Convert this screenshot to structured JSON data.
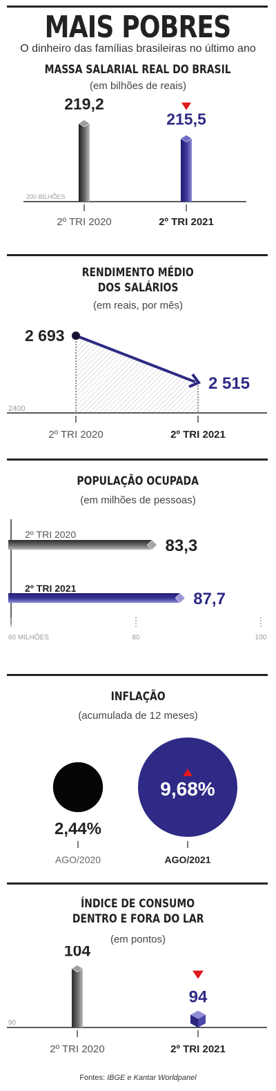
{
  "header": {
    "title": "MAIS POBRES",
    "subtitle": "O dinheiro das famílias brasileiras no último ano"
  },
  "colors": {
    "ink": "#222222",
    "gray_bar": "#555555",
    "navy": "#2e2a85",
    "red": "#e0191d",
    "axis": "#9a9a9a"
  },
  "chart_data": [
    {
      "type": "bar",
      "title": "MASSA SALARIAL REAL DO BRASIL",
      "subtitle": "(em bilhões de reais)",
      "categories": [
        "2º TRI 2020",
        "2º TRI 2021"
      ],
      "values": [
        219.2,
        215.5
      ],
      "value_labels": [
        "219,2",
        "215,5"
      ],
      "baseline": 200,
      "baseline_label": "200 BILHÕES",
      "highlight": "2º TRI 2021",
      "trend": "down"
    },
    {
      "type": "line",
      "title": "RENDIMENTO MÉDIO DOS SALÁRIOS",
      "subtitle": "(em reais, por mês)",
      "categories": [
        "2º TRI 2020",
        "2º TRI 2021"
      ],
      "values": [
        2693,
        2515
      ],
      "value_labels": [
        "2 693",
        "2 515"
      ],
      "baseline": 2400,
      "baseline_label": "2400",
      "highlight": "2º TRI 2021"
    },
    {
      "type": "bar",
      "orientation": "horizontal",
      "title": "POPULAÇÃO OCUPADA",
      "subtitle": "(em milhões de pessoas)",
      "categories": [
        "2º TRI 2020",
        "2º TRI 2021"
      ],
      "values": [
        83.3,
        87.7
      ],
      "value_labels": [
        "83,3",
        "87,7"
      ],
      "xlim": [
        60,
        100
      ],
      "tick_labels": [
        "60 MILHÕES",
        "80",
        "100"
      ],
      "highlight": "2º TRI 2021"
    },
    {
      "type": "bubble",
      "title": "INFLAÇÃO",
      "subtitle": "(acumulada de 12 meses)",
      "categories": [
        "AGO/2020",
        "AGO/2021"
      ],
      "values": [
        2.44,
        9.68
      ],
      "value_labels": [
        "2,44%",
        "9,68%"
      ],
      "highlight": "AGO/2021",
      "trend": "up"
    },
    {
      "type": "bar",
      "title": "ÍNDICE DE CONSUMO DENTRO E FORA DO LAR",
      "subtitle": "(em pontos)",
      "categories": [
        "2º TRI 2020",
        "2º TRI 2021"
      ],
      "values": [
        104,
        94
      ],
      "value_labels": [
        "104",
        "94"
      ],
      "baseline": 90,
      "baseline_label": "90",
      "highlight": "2º TRI 2021",
      "trend": "down"
    }
  ],
  "source": {
    "prefix": "Fontes: ",
    "names": "IBGE e Kantar Worldpanel"
  }
}
